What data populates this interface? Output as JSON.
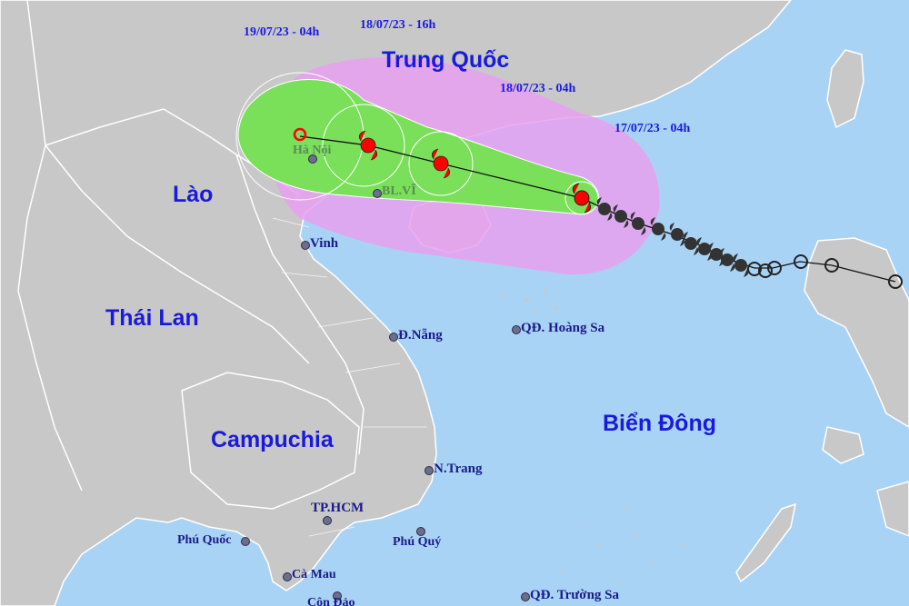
{
  "colors": {
    "sea": "#a9d3f5",
    "land": "#c8c8c8",
    "border": "#ffffff",
    "danger_zone": "#e8a0f0",
    "strong_wind_zone": "#7ae05a",
    "storm_center": "#ff0000",
    "track_past": "#333333"
  },
  "countries": {
    "trung_quoc": "Trung Quốc",
    "lao": "Lào",
    "thai_lan": "Thái Lan",
    "campuchia": "Campuchia",
    "bien_dong": "Biển Đông"
  },
  "cities": {
    "ha_noi": "Hà Nội",
    "bach_long_vi": "BL.VĨ",
    "vinh": "Vinh",
    "da_nang": "Đ.Nẵng",
    "hoang_sa": "QĐ. Hoàng Sa",
    "nha_trang": "N.Trang",
    "tp_hcm": "TP.HCM",
    "phu_quoc": "Phú Quốc",
    "phu_quy": "Phú Quý",
    "ca_mau": "Cà Mau",
    "con_dao": "Côn Đảo",
    "truong_sa": "QĐ. Trường Sa"
  },
  "forecast_times": {
    "t1": "17/07/23 - 04h",
    "t2": "18/07/23 - 04h",
    "t3": "18/07/23 - 16h",
    "t4": "19/07/23 - 04h"
  },
  "icons": {
    "storm_symbol": "typhoon-icon",
    "depression_symbol": "low-pressure-icon",
    "city_marker": "city-dot-icon"
  }
}
